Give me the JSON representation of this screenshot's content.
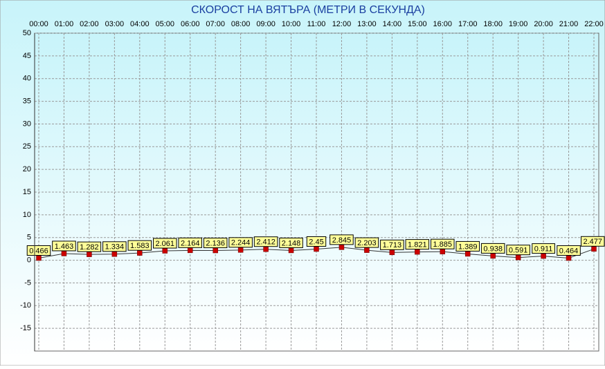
{
  "chart_data": {
    "type": "line",
    "title": "СКОРОСТ НА ВЯТЪРА (МЕТРИ В СЕКУНДА)",
    "categories": [
      "00:00",
      "01:00",
      "02:00",
      "03:00",
      "04:00",
      "05:00",
      "06:00",
      "07:00",
      "08:00",
      "09:00",
      "10:00",
      "11:00",
      "12:00",
      "13:00",
      "14:00",
      "15:00",
      "16:00",
      "17:00",
      "18:00",
      "19:00",
      "20:00",
      "21:00",
      "22:00"
    ],
    "values": [
      0.466,
      1.463,
      1.282,
      1.334,
      1.583,
      2.061,
      2.164,
      2.136,
      2.244,
      2.412,
      2.148,
      2.45,
      2.845,
      2.203,
      1.713,
      1.821,
      1.885,
      1.389,
      0.938,
      0.591,
      0.911,
      0.464,
      2.477
    ],
    "ylim": [
      -20,
      50
    ],
    "yticks": [
      50,
      45,
      40,
      35,
      30,
      25,
      20,
      15,
      10,
      5,
      0,
      -5,
      -10,
      -15
    ],
    "grid": true,
    "color": "#333333",
    "marker_color": "#cc0000",
    "label_color": "#ffff99"
  }
}
